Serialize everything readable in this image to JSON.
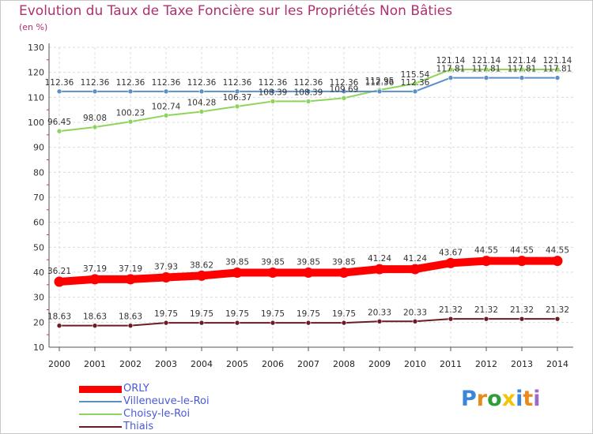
{
  "title": "Evolution du Taux de Taxe Foncière sur les Propriétés Non Bâties",
  "subtitle": "(en %)",
  "brand": {
    "letters": [
      "P",
      "r",
      "o",
      "x",
      "i",
      "t",
      "i"
    ],
    "colors": [
      "#3a86d8",
      "#e98a1c",
      "#2f9e3a",
      "#f2c40c",
      "#3a86d8",
      "#e98a1c",
      "#9c6ac8"
    ]
  },
  "chart_data": {
    "type": "line",
    "x": [
      "2000",
      "2001",
      "2002",
      "2003",
      "2004",
      "2005",
      "2006",
      "2007",
      "2008",
      "2009",
      "2010",
      "2011",
      "2012",
      "2013",
      "2014"
    ],
    "ylim": [
      10,
      130
    ],
    "yticks": [
      10,
      20,
      30,
      40,
      50,
      60,
      70,
      80,
      90,
      100,
      110,
      120,
      130
    ],
    "grid": true,
    "legend_position": "bottom-left",
    "series": [
      {
        "name": "ORLY",
        "color": "#ff0000",
        "values": [
          36.21,
          37.19,
          37.19,
          37.93,
          38.62,
          39.85,
          39.85,
          39.85,
          39.85,
          41.24,
          41.24,
          43.67,
          44.55,
          44.55,
          44.55
        ],
        "labels": [
          "36.21",
          "37.19",
          "37.19",
          "37.93",
          "38.62",
          "39.85",
          "39.85",
          "39.85",
          "39.85",
          "41.24",
          "41.24",
          "43.67",
          "44.55",
          "44.55",
          "44.55"
        ]
      },
      {
        "name": "Villeneuve-le-Roi",
        "color": "#5b8fc7",
        "values": [
          112.36,
          112.36,
          112.36,
          112.36,
          112.36,
          112.36,
          112.36,
          112.36,
          112.36,
          112.36,
          112.36,
          117.81,
          117.81,
          117.81,
          117.81
        ],
        "labels": [
          "112.36",
          "112.36",
          "112.36",
          "112.36",
          "112.36",
          "112.36",
          "112.36",
          "112.36",
          "112.36",
          "112.36",
          "112.36",
          "117.81",
          "117.81",
          "117.81",
          "117.81"
        ]
      },
      {
        "name": "Choisy-le-Roi",
        "color": "#8fd45a",
        "values": [
          96.45,
          98.08,
          100.23,
          102.74,
          104.28,
          106.37,
          108.39,
          108.39,
          109.69,
          112.95,
          115.54,
          121.14,
          121.14,
          121.14,
          121.14
        ],
        "labels": [
          "96.45",
          "98.08",
          "100.23",
          "102.74",
          "104.28",
          "106.37",
          "108.39",
          "108.39",
          "109.69",
          "112.95",
          "115.54",
          "121.14",
          "121.14",
          "121.14",
          "121.14"
        ]
      },
      {
        "name": "Thiais",
        "color": "#6b1c22",
        "values": [
          18.63,
          18.63,
          18.63,
          19.75,
          19.75,
          19.75,
          19.75,
          19.75,
          19.75,
          20.33,
          20.33,
          21.32,
          21.32,
          21.32,
          21.32
        ],
        "labels": [
          "18.63",
          "18.63",
          "18.63",
          "19.75",
          "19.75",
          "19.75",
          "19.75",
          "19.75",
          "19.75",
          "20.33",
          "20.33",
          "21.32",
          "21.32",
          "21.32",
          "21.32"
        ]
      }
    ]
  }
}
